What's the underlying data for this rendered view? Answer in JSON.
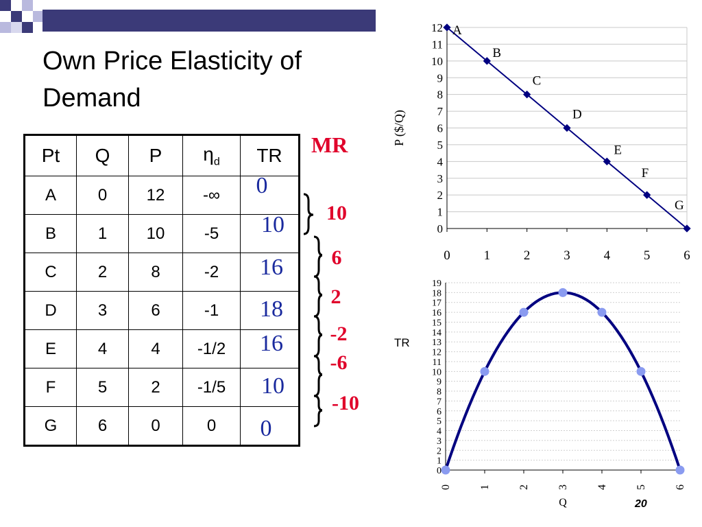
{
  "slide": {
    "title_line1": "Own Price Elasticity of",
    "title_line2": "Demand",
    "page_number": "20"
  },
  "table": {
    "headers": [
      "Pt",
      "Q",
      "P",
      "η",
      "TR"
    ],
    "header_eta_subscript": "d",
    "rows": [
      [
        "A",
        "0",
        "12",
        "-∞"
      ],
      [
        "B",
        "1",
        "10",
        "-5"
      ],
      [
        "C",
        "2",
        "8",
        "-2"
      ],
      [
        "D",
        "3",
        "6",
        "-1"
      ],
      [
        "E",
        "4",
        "4",
        "-1/2"
      ],
      [
        "F",
        "5",
        "2",
        "-1/5"
      ],
      [
        "G",
        "6",
        "0",
        "0"
      ]
    ],
    "tr_values": [
      "0",
      "10",
      "16",
      "18",
      "16",
      "10",
      "0"
    ]
  },
  "mr": {
    "label": "MR",
    "values": [
      "10",
      "6",
      "2",
      "-2",
      "-6",
      "-10"
    ]
  },
  "colors": {
    "tr_text": "#1a2a9e",
    "mr_text": "#e0002a",
    "demand_line": "#000080",
    "tr_curve": "#000080",
    "tr_points": "#8a9bf0",
    "header_band": "#3b3a78"
  },
  "chart_data": [
    {
      "type": "line",
      "x": [
        0,
        1,
        2,
        3,
        4,
        5,
        6
      ],
      "series": [
        {
          "values": [
            12,
            10,
            8,
            6,
            4,
            2,
            0
          ]
        }
      ],
      "point_labels": [
        "A",
        "B",
        "C",
        "D",
        "E",
        "F",
        "G"
      ],
      "xticks": [
        "0",
        "1",
        "2",
        "3",
        "4",
        "5",
        "6"
      ],
      "yticks": [
        "0",
        "1",
        "2",
        "3",
        "4",
        "5",
        "6",
        "7",
        "8",
        "9",
        "10",
        "11",
        "12"
      ],
      "xlabel": "",
      "ylabel": "P ($/Q)",
      "xlim": [
        0,
        6
      ],
      "ylim": [
        0,
        12
      ],
      "grid": true
    },
    {
      "type": "scatter",
      "x": [
        0,
        1,
        2,
        3,
        4,
        5,
        6
      ],
      "series": [
        {
          "values": [
            0,
            10,
            16,
            18,
            16,
            10,
            0
          ]
        }
      ],
      "xticks": [
        "0",
        "1",
        "2",
        "3",
        "4",
        "5",
        "6"
      ],
      "yticks": [
        "0",
        "1",
        "2",
        "3",
        "4",
        "5",
        "6",
        "7",
        "8",
        "9",
        "10",
        "11",
        "12",
        "13",
        "14",
        "15",
        "16",
        "17",
        "18",
        "19"
      ],
      "xlabel": "Q",
      "ylabel": "TR",
      "xlim": [
        0,
        6
      ],
      "ylim": [
        0,
        19
      ],
      "grid": true,
      "fitted_curve": "quadratic"
    }
  ]
}
